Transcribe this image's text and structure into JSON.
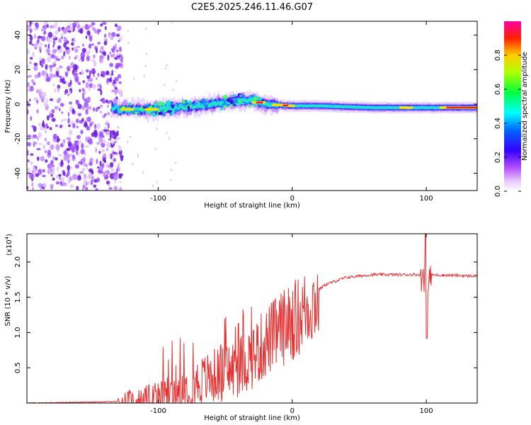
{
  "title": "C2E5.2025.246.11.46.G07",
  "chart_data": [
    {
      "type": "heatmap",
      "name": "spectrogram",
      "xlabel": "Height of straight line (km)",
      "ylabel": "Frequency (Hz)",
      "xlim": [
        -198,
        138
      ],
      "ylim": [
        -50,
        48
      ],
      "xticks": [
        -100,
        0,
        100
      ],
      "yticks": [
        -40,
        -20,
        0,
        20,
        40
      ],
      "colorbar": {
        "label": "Normalized spectral amplitude",
        "range": [
          0,
          1
        ],
        "ticks": [
          "0.0",
          "0.2",
          "0.4",
          "0.6",
          "0.8"
        ],
        "tick_values": [
          0.0,
          0.2,
          0.4,
          0.6,
          0.8
        ],
        "colors": [
          "#ffffff",
          "#cc00ff",
          "#0000ff",
          "#00ffff",
          "#00ff00",
          "#ffff00",
          "#ff0000",
          "#ff00ff"
        ]
      },
      "description_ranges": {
        "noise_region_x": [
          -198,
          -135
        ],
        "signal_start_x": -135,
        "signal_center_freq": [
          [
            -130,
            -3
          ],
          [
            -100,
            -3
          ],
          [
            -70,
            -1
          ],
          [
            -40,
            2
          ],
          [
            -30,
            2
          ],
          [
            -20,
            0
          ],
          [
            0,
            -1
          ],
          [
            20,
            -1
          ],
          [
            60,
            -2
          ],
          [
            100,
            -2
          ],
          [
            138,
            -2
          ]
        ]
      }
    },
    {
      "type": "line",
      "name": "snr",
      "xlabel": "Height of straight line (km)",
      "ylabel": "SNR (10 * v/v)",
      "multiplier": "(x10",
      "multiplier_exp": "4",
      "multiplier_close": ")",
      "xlim": [
        -198,
        138
      ],
      "ylim": [
        0,
        2.4
      ],
      "xticks": [
        -100,
        0,
        100
      ],
      "yticks": [
        "0.5",
        "1.0",
        "1.5",
        "2.0"
      ],
      "ytick_values": [
        0.5,
        1.0,
        1.5,
        2.0
      ],
      "color": "#e83030",
      "envelope": [
        [
          -198,
          0.0
        ],
        [
          -130,
          0.02
        ],
        [
          -110,
          0.05
        ],
        [
          -90,
          0.18
        ],
        [
          -80,
          0.28
        ],
        [
          -60,
          0.45
        ],
        [
          -40,
          0.6
        ],
        [
          -25,
          0.85
        ],
        [
          -15,
          1.05
        ],
        [
          -5,
          1.2
        ],
        [
          5,
          1.35
        ],
        [
          15,
          1.55
        ],
        [
          25,
          1.68
        ],
        [
          40,
          1.78
        ],
        [
          60,
          1.82
        ],
        [
          95,
          1.82
        ],
        [
          100,
          1.82
        ],
        [
          138,
          1.8
        ]
      ],
      "spikes": [
        {
          "x": 100,
          "max": 2.45,
          "min": 0.92
        }
      ]
    }
  ]
}
